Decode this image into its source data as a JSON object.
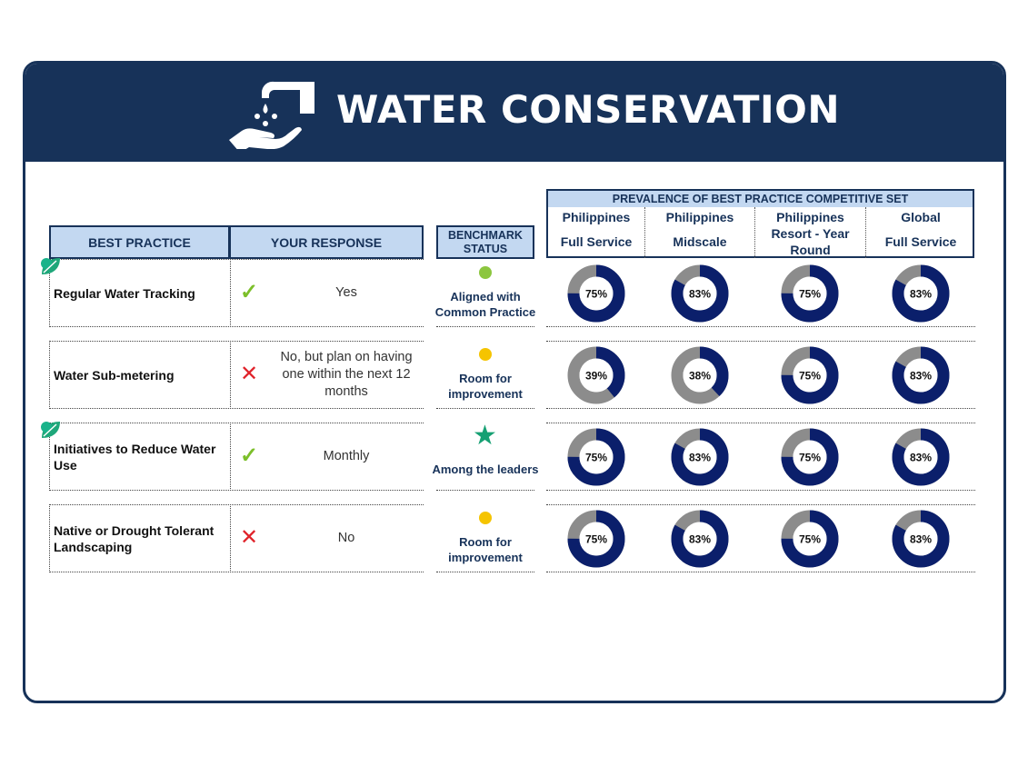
{
  "header": {
    "title": "WATER CONSERVATION",
    "icon": "hand-water-drop-icon"
  },
  "columns": {
    "best_practice": "BEST PRACTICE",
    "your_response": "YOUR RESPONSE",
    "benchmark_line1": "BENCHMARK",
    "benchmark_line2": "STATUS",
    "prevalence": "PREVALENCE OF BEST PRACTICE COMPETITIVE SET",
    "segments": [
      {
        "line1": "Philippines",
        "line2": "Full Service"
      },
      {
        "line1": "Philippines",
        "line2": "Midscale"
      },
      {
        "line1": "Philippines",
        "line2": "Resort - Year",
        "line3": "Round"
      },
      {
        "line1": "Global",
        "line2": "Full Service"
      }
    ]
  },
  "colors": {
    "navy": "#173259",
    "donut_fill": "#0b1f6b",
    "donut_rest": "#8c8c8c",
    "green": "#8cc63f",
    "yellow": "#f5c400",
    "star": "#16a073"
  },
  "rows": [
    {
      "practice": [
        "Regular Water Tracking"
      ],
      "leaf_icon": true,
      "mark": "check",
      "mark_glyph": "✓",
      "response": [
        "Yes"
      ],
      "status": "green-dot",
      "benchmark": [
        "Aligned with",
        "Common Practice"
      ],
      "prevalence": [
        75,
        83,
        75,
        83
      ],
      "labels": [
        "75%",
        "83%",
        "75%",
        "83%"
      ]
    },
    {
      "practice": [
        "Water Sub-metering"
      ],
      "leaf_icon": false,
      "mark": "cross",
      "mark_glyph": "✕",
      "response": [
        "No, but plan on having",
        "one within the next 12",
        "months"
      ],
      "status": "yellow-dot",
      "benchmark": [
        "Room for",
        "improvement"
      ],
      "prevalence": [
        39,
        38,
        75,
        83
      ],
      "labels": [
        "39%",
        "38%",
        "75%",
        "83%"
      ]
    },
    {
      "practice": [
        "Initiatives to Reduce Water",
        "Use"
      ],
      "leaf_icon": true,
      "mark": "check",
      "mark_glyph": "✓",
      "response": [
        "Monthly"
      ],
      "status": "star",
      "status_glyph": "★",
      "benchmark": [
        "Among the leaders"
      ],
      "prevalence": [
        75,
        83,
        75,
        83
      ],
      "labels": [
        "75%",
        "83%",
        "75%",
        "83%"
      ]
    },
    {
      "practice": [
        "Native or Drought Tolerant",
        "Landscaping"
      ],
      "leaf_icon": false,
      "mark": "cross",
      "mark_glyph": "✕",
      "response": [
        "No"
      ],
      "status": "yellow-dot",
      "benchmark": [
        "Room for",
        "improvement"
      ],
      "prevalence": [
        75,
        83,
        75,
        83
      ],
      "labels": [
        "75%",
        "83%",
        "75%",
        "83%"
      ]
    }
  ]
}
